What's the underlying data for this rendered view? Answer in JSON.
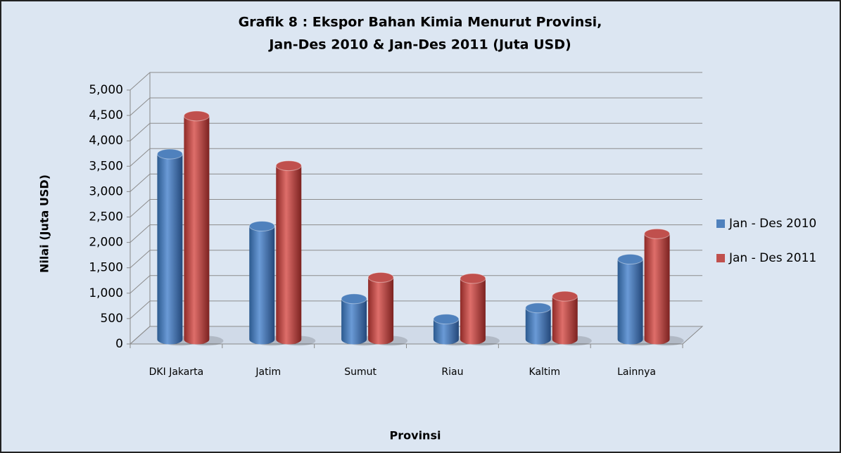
{
  "chart_data": {
    "type": "bar3d",
    "title": [
      "Grafik 8 : Ekspor Bahan Kimia Menurut Provinsi,",
      "Jan-Des 2010 & Jan-Des 2011 (Juta USD)"
    ],
    "y_label": "Nilai (Juta USD)",
    "x_label": "Provinsi",
    "categories": [
      "DKI Jakarta",
      "Jatim",
      "Sumut",
      "Riau",
      "Kaltim",
      "Lainnya"
    ],
    "series": [
      {
        "name": "Jan - Des 2010",
        "color": "#4f81bd",
        "values": [
          3650,
          2230,
          800,
          400,
          620,
          1580
        ]
      },
      {
        "name": "Jan - Des 2011",
        "color": "#c0504d",
        "values": [
          4400,
          3420,
          1220,
          1200,
          850,
          2080
        ]
      }
    ],
    "ylim": [
      0,
      5000
    ],
    "yticks": [
      0,
      500,
      {
        "value": 1000,
        "label": "1,000"
      },
      {
        "value": 1500,
        "label": "1,500"
      },
      {
        "value": 2000,
        "label": "2,000"
      },
      {
        "value": 2500,
        "label": "2,500"
      },
      {
        "value": 3000,
        "label": "3,000"
      },
      {
        "value": 3500,
        "label": "3,500"
      },
      {
        "value": 4000,
        "label": "4,000"
      },
      {
        "value": 4500,
        "label": "4,500"
      },
      {
        "value": 5000,
        "label": "5,000"
      }
    ],
    "grid": true,
    "legend": "right"
  }
}
